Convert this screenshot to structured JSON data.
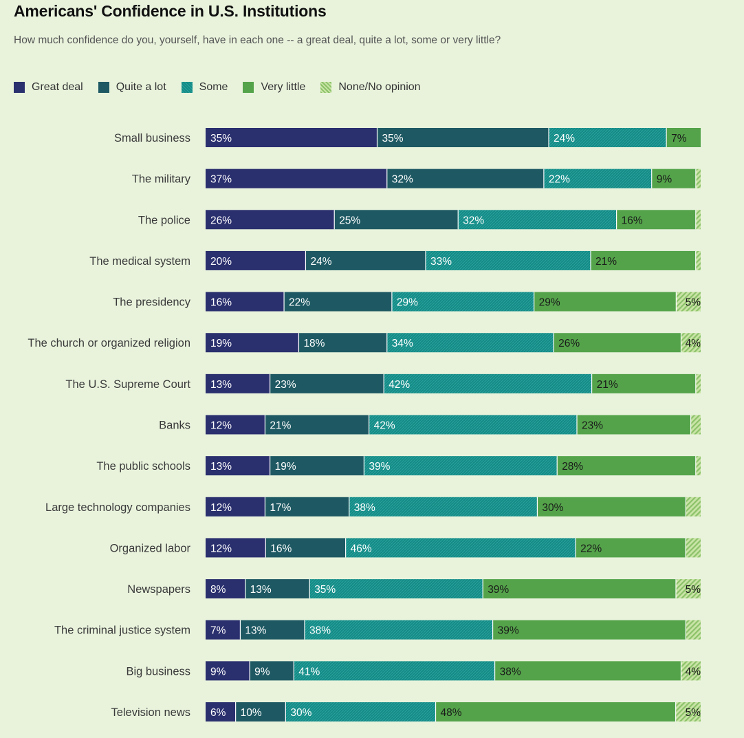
{
  "chart_data": {
    "type": "bar",
    "orientation": "horizontal",
    "stacked": true,
    "title": "Americans' Confidence in U.S. Institutions",
    "subtitle": "How much confidence do you, yourself, have in each one -- a great deal, quite a lot, some or very little?",
    "xlabel": "",
    "ylabel": "",
    "xlim": [
      0,
      100
    ],
    "legend_position": "top-left",
    "categories": [
      "Small business",
      "The military",
      "The police",
      "The medical system",
      "The presidency",
      "The church or organized religion",
      "The U.S. Supreme Court",
      "Banks",
      "The public schools",
      "Large technology companies",
      "Organized labor",
      "Newspapers",
      "The criminal justice system",
      "Big business",
      "Television news"
    ],
    "series": [
      {
        "name": "Great deal",
        "color": "#2a2f6e",
        "label_color": "#ffffff",
        "pattern": false,
        "values": [
          35,
          37,
          26,
          20,
          16,
          19,
          13,
          12,
          13,
          12,
          12,
          8,
          7,
          9,
          6
        ]
      },
      {
        "name": "Quite a lot",
        "color": "#1e5963",
        "label_color": "#ffffff",
        "pattern": false,
        "values": [
          35,
          32,
          25,
          24,
          22,
          18,
          23,
          21,
          19,
          17,
          16,
          13,
          13,
          9,
          10
        ]
      },
      {
        "name": "Some",
        "color": "#158a86",
        "label_color": "#ffffff",
        "pattern": true,
        "values": [
          24,
          22,
          32,
          33,
          29,
          34,
          42,
          42,
          39,
          38,
          46,
          35,
          38,
          41,
          30
        ]
      },
      {
        "name": "Very little",
        "color": "#54a34a",
        "label_color": "#1a1a1a",
        "pattern": false,
        "values": [
          7,
          9,
          16,
          21,
          29,
          26,
          21,
          23,
          28,
          30,
          22,
          39,
          39,
          38,
          48
        ]
      },
      {
        "name": "None/No opinion",
        "color": "#8cc269",
        "label_color": "#1a1a1a",
        "pattern": true,
        "values": [
          0,
          1,
          1,
          1,
          5,
          4,
          1,
          2,
          1,
          3,
          3,
          5,
          3,
          4,
          5
        ]
      }
    ],
    "value_labels": [
      [
        "35%",
        "35%",
        "24%",
        "7%",
        ""
      ],
      [
        "37%",
        "32%",
        "22%",
        "9%",
        ""
      ],
      [
        "26%",
        "25%",
        "32%",
        "16%",
        ""
      ],
      [
        "20%",
        "24%",
        "33%",
        "21%",
        ""
      ],
      [
        "16%",
        "22%",
        "29%",
        "29%",
        "5%"
      ],
      [
        "19%",
        "18%",
        "34%",
        "26%",
        "4%"
      ],
      [
        "13%",
        "23%",
        "42%",
        "21%",
        ""
      ],
      [
        "12%",
        "21%",
        "42%",
        "23%",
        ""
      ],
      [
        "13%",
        "19%",
        "39%",
        "28%",
        ""
      ],
      [
        "12%",
        "17%",
        "38%",
        "30%",
        ""
      ],
      [
        "12%",
        "16%",
        "46%",
        "22%",
        ""
      ],
      [
        "8%",
        "13%",
        "35%",
        "39%",
        "5%"
      ],
      [
        "7%",
        "13%",
        "38%",
        "39%",
        ""
      ],
      [
        "9%",
        "9%",
        "41%",
        "38%",
        "4%"
      ],
      [
        "6%",
        "10%",
        "30%",
        "48%",
        "5%"
      ]
    ]
  }
}
